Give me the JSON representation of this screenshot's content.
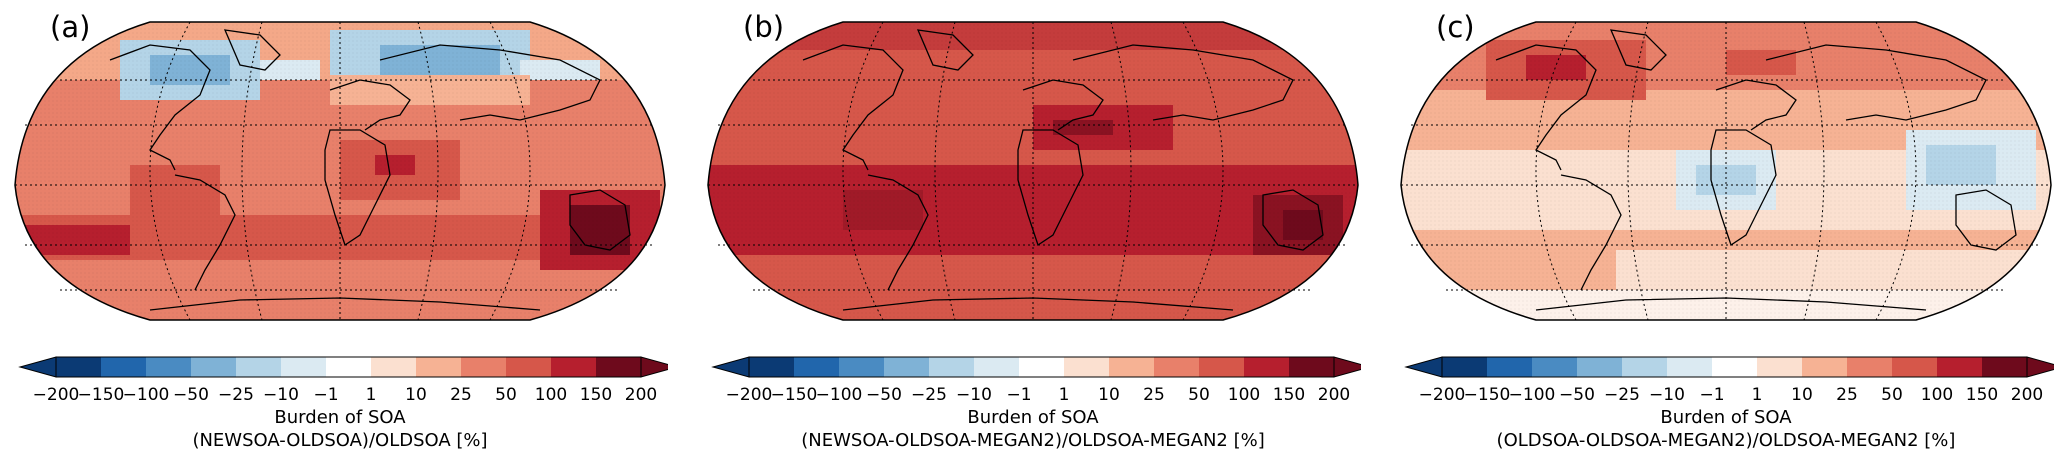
{
  "colorbar": {
    "ticks": [
      "−200",
      "−150",
      "−100",
      "−50",
      "−25",
      "−10",
      "−1",
      "1",
      "10",
      "25",
      "50",
      "100",
      "150",
      "200"
    ],
    "colors": [
      "#0b3a74",
      "#2166ac",
      "#4a8bc2",
      "#7fb2d6",
      "#b4d4e7",
      "#dbeaf2",
      "#ffffff",
      "#fbe0d0",
      "#f6b294",
      "#e8806a",
      "#d6574a",
      "#b61f2e",
      "#6e0a1c"
    ],
    "extend": "both"
  },
  "panels": [
    {
      "letter": "(a)",
      "label_line1": "Burden of SOA",
      "label_line2": "(NEWSOA-OLDSOA)/OLDSOA [%]"
    },
    {
      "letter": "(b)",
      "label_line1": "Burden of SOA",
      "label_line2": "(NEWSOA-OLDSOA-MEGAN2)/OLDSOA-MEGAN2 [%]"
    },
    {
      "letter": "(c)",
      "label_line1": "Burden of SOA",
      "label_line2": "(OLDSOA-OLDSOA-MEGAN2)/OLDSOA-MEGAN2 [%]"
    }
  ]
}
